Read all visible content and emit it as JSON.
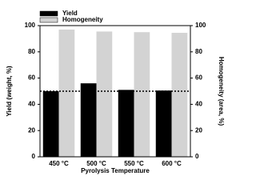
{
  "chart_data": {
    "type": "bar",
    "categories": [
      "450 °C",
      "500 °C",
      "550 °C",
      "600 °C"
    ],
    "series": [
      {
        "name": "Yield",
        "color": "#000000",
        "values": [
          50,
          56,
          51,
          50.5
        ]
      },
      {
        "name": "Homogeneity",
        "color": "#d3d3d3",
        "values": [
          97,
          95.5,
          95,
          94.5
        ],
        "axis": "y2"
      }
    ],
    "xlabel": "Pyrolysis Temperature",
    "ylabel": "Yield (weight, %)",
    "y2label": "Homogeneity (area, %)",
    "ylim": [
      0,
      100
    ],
    "yticks": [
      0,
      20,
      40,
      60,
      80,
      100
    ],
    "y2lim": [
      0,
      100
    ],
    "y2ticks": [
      0,
      20,
      40,
      60,
      80,
      100
    ],
    "hline": 50,
    "legend": "top-left"
  }
}
